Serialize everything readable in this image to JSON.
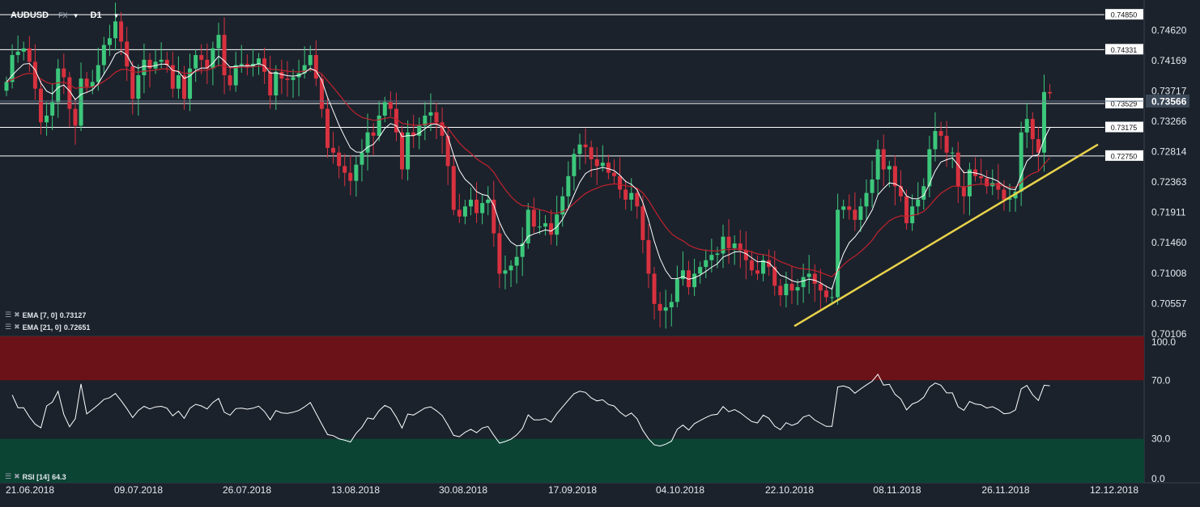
{
  "toolbar": {
    "symbol": "AUDUSD",
    "instrument_type": "FX",
    "timeframe": "D1"
  },
  "indicators": {
    "ema7_label": "EMA [7, 0]",
    "ema7_value": "0.73127",
    "ema21_label": "EMA [21, 0]",
    "ema21_value": "0.72651",
    "rsi_label": "RSI [14]",
    "rsi_value": "64.3"
  },
  "colors": {
    "background": "#1b222c",
    "bull": "#3cc77b",
    "bear": "#d8313f",
    "ema7": "#ffffff",
    "ema21": "#c2222e",
    "trendline": "#e8d24a",
    "rsi_overbought_zone": "#6b1218",
    "rsi_oversold_zone": "#0c4434"
  },
  "icons": [
    "list-icon",
    "close-icon",
    "chevron-down-icon"
  ],
  "chart_data": [
    {
      "type": "candlestick",
      "title": "AUDUSD",
      "timeframe": "D1",
      "x_tick_labels": [
        "21.06.2018",
        "09.07.2018",
        "26.07.2018",
        "13.08.2018",
        "30.08.2018",
        "17.09.2018",
        "04.10.2018",
        "22.10.2018",
        "08.11.2018",
        "26.11.2018",
        "12.12.2018"
      ],
      "y_tick_labels": [
        "0.74620",
        "0.74169",
        "0.73717",
        "0.73266",
        "0.72814",
        "0.72363",
        "0.71911",
        "0.71460",
        "0.71008",
        "0.70557",
        "0.70106"
      ],
      "ylim": [
        0.7008,
        0.749
      ],
      "current_price": "0.73566",
      "horizontal_levels": [
        "0.74850",
        "0.74331",
        "0.73529",
        "0.73175",
        "0.72750"
      ],
      "trendline": {
        "from": [
          "22.10.2018",
          0.7022
        ],
        "to": [
          "12.12.2018",
          0.7292
        ]
      },
      "close": [
        0.7385,
        0.7425,
        0.743,
        0.7435,
        0.7415,
        0.7375,
        0.7325,
        0.7335,
        0.7355,
        0.7405,
        0.7392,
        0.7345,
        0.732,
        0.739,
        0.7378,
        0.7385,
        0.741,
        0.744,
        0.745,
        0.7475,
        0.7445,
        0.7408,
        0.736,
        0.7395,
        0.7418,
        0.7405,
        0.7415,
        0.7418,
        0.741,
        0.7375,
        0.7395,
        0.736,
        0.7405,
        0.7425,
        0.7418,
        0.7405,
        0.7435,
        0.7455,
        0.7395,
        0.738,
        0.741,
        0.7412,
        0.7408,
        0.7412,
        0.742,
        0.74,
        0.7365,
        0.74,
        0.739,
        0.7388,
        0.7392,
        0.7398,
        0.741,
        0.7425,
        0.739,
        0.7345,
        0.7287,
        0.728,
        0.726,
        0.725,
        0.7238,
        0.7262,
        0.728,
        0.731,
        0.7305,
        0.7335,
        0.7355,
        0.7345,
        0.731,
        0.7255,
        0.731,
        0.7305,
        0.732,
        0.7335,
        0.734,
        0.7325,
        0.7305,
        0.726,
        0.7195,
        0.7185,
        0.72,
        0.721,
        0.719,
        0.7205,
        0.721,
        0.716,
        0.71,
        0.7105,
        0.7112,
        0.7125,
        0.7145,
        0.7195,
        0.717,
        0.717,
        0.7175,
        0.7158,
        0.7188,
        0.7215,
        0.7245,
        0.7278,
        0.7292,
        0.7288,
        0.727,
        0.726,
        0.7265,
        0.725,
        0.7245,
        0.7225,
        0.721,
        0.722,
        0.72,
        0.715,
        0.71,
        0.7055,
        0.7045,
        0.705,
        0.7058,
        0.7092,
        0.7105,
        0.708,
        0.71,
        0.711,
        0.712,
        0.7128,
        0.713,
        0.7155,
        0.7138,
        0.7145,
        0.7135,
        0.712,
        0.7105,
        0.71,
        0.712,
        0.711,
        0.7082,
        0.7068,
        0.7085,
        0.7075,
        0.708,
        0.7095,
        0.71,
        0.7085,
        0.7075,
        0.7065,
        0.7065,
        0.7195,
        0.72,
        0.7195,
        0.718,
        0.72,
        0.722,
        0.724,
        0.7285,
        0.7255,
        0.726,
        0.723,
        0.7215,
        0.7175,
        0.72,
        0.721,
        0.723,
        0.7285,
        0.7312,
        0.7305,
        0.728,
        0.728,
        0.723,
        0.7215,
        0.7255,
        0.7245,
        0.7242,
        0.723,
        0.7235,
        0.7225,
        0.721,
        0.7212,
        0.7222,
        0.731,
        0.733,
        0.73,
        0.728,
        0.737,
        0.7368
      ],
      "open": [
        0.7372,
        0.7385,
        0.7425,
        0.743,
        0.7435,
        0.7415,
        0.7375,
        0.7325,
        0.7335,
        0.7355,
        0.7405,
        0.7392,
        0.7345,
        0.732,
        0.739,
        0.7378,
        0.7385,
        0.741,
        0.744,
        0.745,
        0.7475,
        0.7445,
        0.7408,
        0.736,
        0.7395,
        0.7418,
        0.7405,
        0.7415,
        0.7418,
        0.741,
        0.7375,
        0.7395,
        0.736,
        0.7405,
        0.7425,
        0.7418,
        0.7405,
        0.7435,
        0.7455,
        0.7395,
        0.738,
        0.741,
        0.7412,
        0.7408,
        0.7412,
        0.742,
        0.74,
        0.7365,
        0.74,
        0.739,
        0.7388,
        0.7392,
        0.7398,
        0.741,
        0.7425,
        0.739,
        0.7345,
        0.7287,
        0.728,
        0.726,
        0.725,
        0.7238,
        0.7262,
        0.728,
        0.731,
        0.7305,
        0.7335,
        0.7355,
        0.7345,
        0.731,
        0.7255,
        0.731,
        0.7305,
        0.732,
        0.7335,
        0.734,
        0.7325,
        0.7305,
        0.726,
        0.7195,
        0.7185,
        0.72,
        0.721,
        0.719,
        0.7205,
        0.721,
        0.716,
        0.71,
        0.7105,
        0.7112,
        0.7125,
        0.7145,
        0.7195,
        0.717,
        0.717,
        0.7175,
        0.7158,
        0.7188,
        0.7215,
        0.7245,
        0.7278,
        0.7292,
        0.7288,
        0.727,
        0.726,
        0.7265,
        0.725,
        0.7245,
        0.7225,
        0.721,
        0.722,
        0.72,
        0.715,
        0.71,
        0.7055,
        0.7045,
        0.705,
        0.7058,
        0.7092,
        0.7105,
        0.708,
        0.71,
        0.711,
        0.712,
        0.7128,
        0.713,
        0.7155,
        0.7138,
        0.7145,
        0.7135,
        0.712,
        0.7105,
        0.71,
        0.712,
        0.711,
        0.7082,
        0.7068,
        0.7085,
        0.7075,
        0.708,
        0.7095,
        0.71,
        0.7085,
        0.7075,
        0.7065,
        0.7065,
        0.7195,
        0.72,
        0.7195,
        0.718,
        0.72,
        0.722,
        0.724,
        0.7285,
        0.7255,
        0.726,
        0.723,
        0.7215,
        0.7175,
        0.72,
        0.721,
        0.723,
        0.7285,
        0.7312,
        0.7305,
        0.728,
        0.728,
        0.723,
        0.7215,
        0.7255,
        0.7245,
        0.7242,
        0.723,
        0.7235,
        0.7225,
        0.721,
        0.7212,
        0.7222,
        0.731,
        0.733,
        0.73,
        0.728,
        0.737
      ],
      "ema": [
        {
          "name": "EMA [7, 0]",
          "last": 0.73127
        },
        {
          "name": "EMA [21, 0]",
          "last": 0.72651
        }
      ]
    },
    {
      "type": "line",
      "title": "RSI [14]",
      "y_tick_labels": [
        "100.0",
        "70.0",
        "30.0",
        "0.0"
      ],
      "ylim": [
        0,
        100
      ],
      "overbought": 70,
      "oversold": 30,
      "last": 64.3
    }
  ]
}
